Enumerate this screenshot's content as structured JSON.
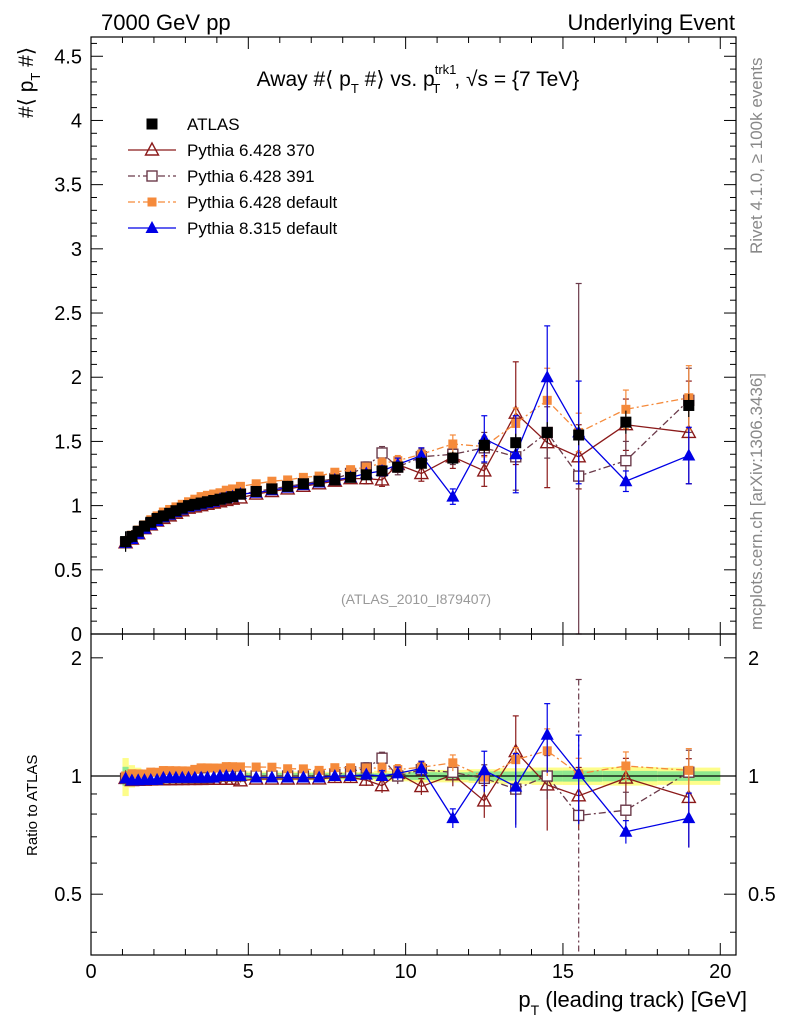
{
  "header": {
    "left": "7000 GeV pp",
    "right": "Underlying Event"
  },
  "side_labels": {
    "rivet": "Rivet 4.1.0, ≥ 100k events",
    "mcplots": "mcplots.cern.ch [arXiv:1306.3436]"
  },
  "chart_data": {
    "type": "scatter",
    "title": "Away #⟨ p_T #⟩ vs. p_T^trk1, √s = {7 TeV}",
    "title_parts": {
      "pre": "Away #⟨ p",
      "sub1": "T",
      "mid": " #⟩ vs. p",
      "sup2": "trk1",
      "sub2": "T",
      "post": ", √s = {7 TeV}"
    },
    "ylabel": "#⟨ p_T #⟩",
    "ylabel_parts": {
      "pre": "#⟨ p",
      "sub": "T",
      "post": " #⟩"
    },
    "xlabel": "p_T (leading track) [GeV]",
    "xlabel_parts": {
      "pre": "p",
      "sub": "T",
      "post": " (leading track) [GeV]"
    },
    "ratio_ylabel": "Ratio to ATLAS",
    "watermark": "(ATLAS_2010_I879407)",
    "xlim": [
      0,
      20.5
    ],
    "ylim": [
      0,
      4.65
    ],
    "ratio_ylim": [
      0.35,
      2.3
    ],
    "xticks": [
      0,
      5,
      10,
      15,
      20
    ],
    "yticks": [
      0,
      0.5,
      1,
      1.5,
      2,
      2.5,
      3,
      3.5,
      4,
      4.5
    ],
    "ytick_labels": [
      "0",
      "0.5",
      "1",
      "1.5",
      "2",
      "2.5",
      "3",
      "3.5",
      "4",
      "4.5"
    ],
    "ratio_yticks": [
      0.5,
      1,
      2
    ],
    "ratio_ytick_labels": [
      "0.5",
      "1",
      "2"
    ],
    "x": [
      1.1,
      1.3,
      1.5,
      1.7,
      1.9,
      2.1,
      2.3,
      2.5,
      2.7,
      2.9,
      3.1,
      3.3,
      3.5,
      3.7,
      3.9,
      4.1,
      4.3,
      4.5,
      4.75,
      5.25,
      5.75,
      6.25,
      6.75,
      7.25,
      7.75,
      8.25,
      8.75,
      9.25,
      9.75,
      10.5,
      11.5,
      12.5,
      13.5,
      14.5,
      15.5,
      17.0,
      19.0
    ],
    "series": [
      {
        "name": "ATLAS",
        "color": "#000000",
        "marker": "filled-square",
        "values": [
          0.72,
          0.76,
          0.8,
          0.84,
          0.87,
          0.9,
          0.92,
          0.94,
          0.96,
          0.98,
          1.0,
          1.01,
          1.02,
          1.03,
          1.04,
          1.05,
          1.06,
          1.07,
          1.09,
          1.11,
          1.13,
          1.15,
          1.17,
          1.19,
          1.2,
          1.22,
          1.24,
          1.27,
          1.3,
          1.33,
          1.37,
          1.47,
          1.49,
          1.57,
          1.55,
          1.65,
          1.78
        ],
        "band_inner": [
          0.04,
          0.03,
          0.03,
          0.02,
          0.02,
          0.02,
          0.02,
          0.02,
          0.02,
          0.02,
          0.02,
          0.02,
          0.02,
          0.02,
          0.02,
          0.02,
          0.02,
          0.02,
          0.02,
          0.02,
          0.02,
          0.02,
          0.02,
          0.02,
          0.02,
          0.02,
          0.02,
          0.02,
          0.02,
          0.03,
          0.03,
          0.04,
          0.04,
          0.05,
          0.05,
          0.05,
          0.05
        ],
        "band_outer": [
          0.08,
          0.05,
          0.04,
          0.03,
          0.03,
          0.03,
          0.03,
          0.03,
          0.03,
          0.03,
          0.03,
          0.03,
          0.03,
          0.03,
          0.03,
          0.03,
          0.03,
          0.03,
          0.03,
          0.03,
          0.03,
          0.03,
          0.03,
          0.03,
          0.03,
          0.03,
          0.03,
          0.04,
          0.04,
          0.05,
          0.05,
          0.06,
          0.07,
          0.08,
          0.08,
          0.09,
          0.09
        ]
      },
      {
        "name": "Pythia 6.428 370",
        "color": "#8b1a1a",
        "marker": "open-triangle",
        "dash": "",
        "values": [
          0.71,
          0.74,
          0.78,
          0.82,
          0.85,
          0.88,
          0.9,
          0.92,
          0.94,
          0.96,
          0.98,
          0.99,
          1.0,
          1.01,
          1.02,
          1.03,
          1.04,
          1.05,
          1.06,
          1.09,
          1.11,
          1.13,
          1.15,
          1.17,
          1.19,
          1.21,
          1.21,
          1.2,
          1.32,
          1.25,
          1.38,
          1.27,
          1.72,
          1.49,
          1.38,
          1.63,
          1.57
        ],
        "errors": [
          0.01,
          0.01,
          0.01,
          0.01,
          0.01,
          0.01,
          0.01,
          0.01,
          0.01,
          0.01,
          0.01,
          0.01,
          0.01,
          0.01,
          0.01,
          0.01,
          0.01,
          0.01,
          0.01,
          0.01,
          0.02,
          0.02,
          0.02,
          0.02,
          0.03,
          0.03,
          0.04,
          0.05,
          0.06,
          0.06,
          0.09,
          0.12,
          0.4,
          0.35,
          0.25,
          0.2,
          0.4
        ]
      },
      {
        "name": "Pythia 6.428 391",
        "color": "#6b3a4a",
        "marker": "open-square",
        "dash": "7,3,2,3",
        "values": [
          0.71,
          0.75,
          0.79,
          0.83,
          0.86,
          0.89,
          0.91,
          0.93,
          0.95,
          0.97,
          0.99,
          1.0,
          1.01,
          1.02,
          1.04,
          1.05,
          1.06,
          1.07,
          1.09,
          1.11,
          1.13,
          1.15,
          1.17,
          1.19,
          1.21,
          1.25,
          1.3,
          1.41,
          1.3,
          1.38,
          1.4,
          1.45,
          1.38,
          1.57,
          1.23,
          1.35,
          1.82
        ],
        "errors": [
          0.01,
          0.01,
          0.01,
          0.01,
          0.01,
          0.01,
          0.01,
          0.01,
          0.01,
          0.01,
          0.01,
          0.01,
          0.01,
          0.01,
          0.01,
          0.01,
          0.01,
          0.01,
          0.01,
          0.02,
          0.02,
          0.02,
          0.02,
          0.02,
          0.03,
          0.03,
          0.04,
          0.05,
          0.06,
          0.06,
          0.08,
          0.12,
          0.26,
          0.2,
          1.5,
          0.15,
          0.25
        ]
      },
      {
        "name": "Pythia 6.428 default",
        "color": "#f58a3b",
        "marker": "filled-small-square",
        "dash": "7,3,2,3",
        "values": [
          0.72,
          0.77,
          0.81,
          0.85,
          0.89,
          0.92,
          0.95,
          0.97,
          0.99,
          1.01,
          1.03,
          1.05,
          1.07,
          1.08,
          1.09,
          1.1,
          1.12,
          1.13,
          1.15,
          1.17,
          1.19,
          1.2,
          1.22,
          1.23,
          1.26,
          1.28,
          1.3,
          1.33,
          1.35,
          1.4,
          1.48,
          1.46,
          1.64,
          1.82,
          1.57,
          1.75,
          1.84
        ],
        "errors": [
          0.01,
          0.01,
          0.01,
          0.01,
          0.01,
          0.01,
          0.01,
          0.01,
          0.01,
          0.01,
          0.01,
          0.01,
          0.01,
          0.01,
          0.01,
          0.01,
          0.01,
          0.01,
          0.01,
          0.01,
          0.02,
          0.02,
          0.02,
          0.02,
          0.02,
          0.03,
          0.03,
          0.04,
          0.04,
          0.05,
          0.07,
          0.08,
          0.12,
          0.25,
          0.15,
          0.15,
          0.25
        ]
      },
      {
        "name": "Pythia 8.315 default",
        "color": "#0000e6",
        "marker": "filled-triangle",
        "dash": "",
        "values": [
          0.71,
          0.74,
          0.78,
          0.82,
          0.85,
          0.88,
          0.91,
          0.93,
          0.95,
          0.97,
          0.99,
          1.0,
          1.01,
          1.02,
          1.03,
          1.05,
          1.06,
          1.07,
          1.09,
          1.1,
          1.12,
          1.14,
          1.16,
          1.18,
          1.2,
          1.22,
          1.25,
          1.27,
          1.32,
          1.39,
          1.07,
          1.52,
          1.4,
          2.0,
          1.57,
          1.19,
          1.39
        ],
        "errors": [
          0.01,
          0.01,
          0.01,
          0.01,
          0.01,
          0.01,
          0.01,
          0.01,
          0.01,
          0.01,
          0.01,
          0.01,
          0.01,
          0.01,
          0.01,
          0.01,
          0.01,
          0.01,
          0.01,
          0.01,
          0.02,
          0.02,
          0.02,
          0.02,
          0.02,
          0.03,
          0.03,
          0.04,
          0.05,
          0.06,
          0.06,
          0.18,
          0.3,
          0.4,
          0.4,
          0.08,
          0.22
        ]
      }
    ]
  }
}
